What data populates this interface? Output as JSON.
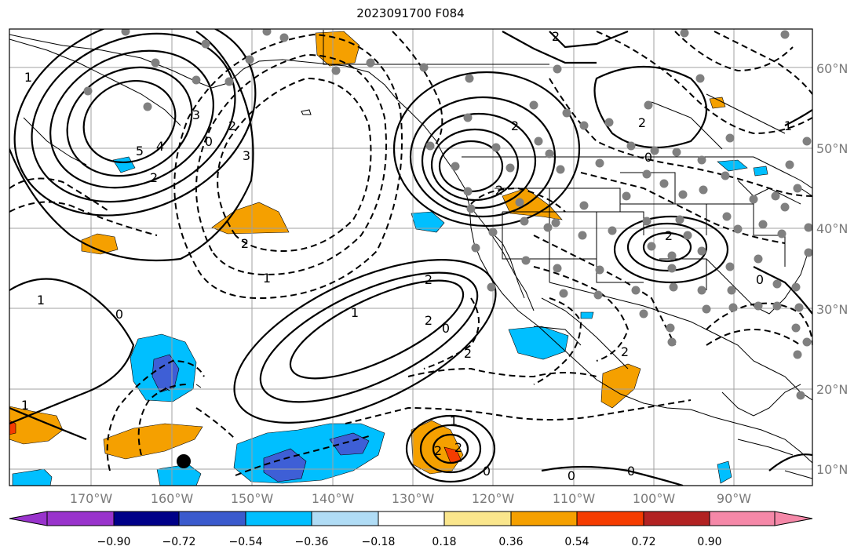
{
  "title": "2023091700 F084",
  "map": {
    "lat_labels": [
      "60°N",
      "50°N",
      "40°N",
      "30°N",
      "20°N",
      "10°N"
    ],
    "lon_labels": [
      "170°W",
      "160°W",
      "150°W",
      "140°W",
      "130°W",
      "120°W",
      "110°W",
      "100°W",
      "90°W"
    ],
    "contour_labels": [
      "1",
      "2",
      "3",
      "4",
      "5",
      "0",
      "2",
      "3",
      "2",
      "1",
      "2",
      "2",
      "2",
      "0",
      "1",
      "0",
      "2",
      "2",
      "1",
      "0",
      "2",
      "2",
      "1",
      "2",
      "2",
      "0",
      "1",
      "0",
      "0",
      "0",
      "2",
      "1",
      "2"
    ],
    "colors": {
      "land": "#000000",
      "grid": "#a0a0a0",
      "station": "#808080",
      "orange": "#f5a000",
      "blue": "#00bfff",
      "lightblue": "#a8dcf5",
      "royal": "#3e5fd6"
    }
  },
  "colorbar": {
    "tick_labels": [
      "−0.90",
      "−0.72",
      "−0.54",
      "−0.36",
      "−0.18",
      "0.18",
      "0.36",
      "0.54",
      "0.72",
      "0.90"
    ],
    "colors": [
      "#9933cc",
      "#000088",
      "#3a5acd",
      "#00bfff",
      "#b0dcf5",
      "#ffffff",
      "#fae68c",
      "#f5a000",
      "#f53c00",
      "#b22222",
      "#f588a8"
    ]
  }
}
